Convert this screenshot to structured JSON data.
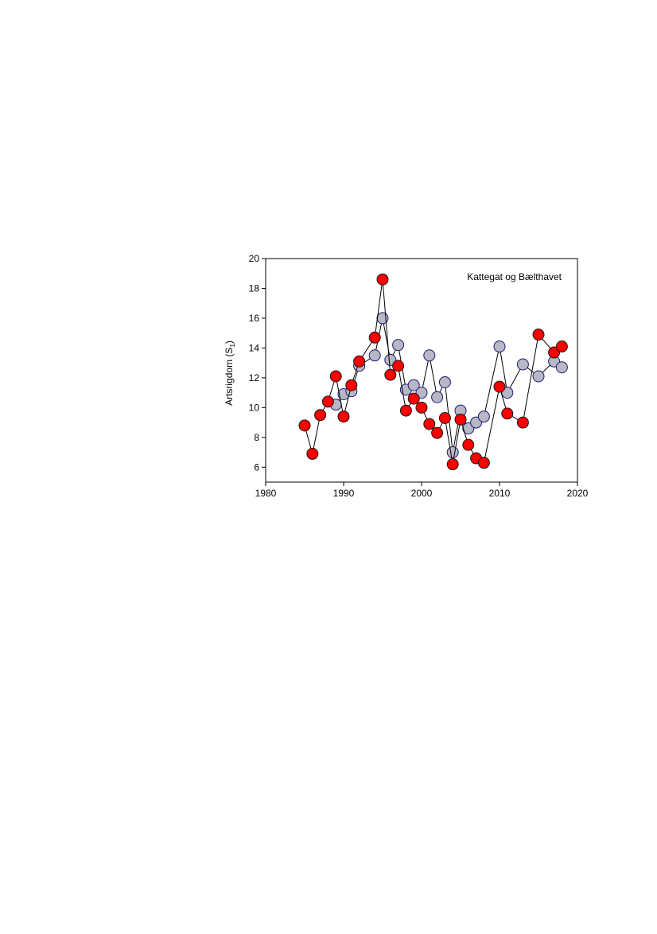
{
  "chart_data": {
    "type": "scatter",
    "title": "",
    "annotation": "Kattegat og Bælthavet",
    "xlabel": "",
    "ylabel": "Artsrigdom (S",
    "ylabel_subscript": "1",
    "ylabel_suffix": ")",
    "xlim": [
      1980,
      2020
    ],
    "ylim": [
      5,
      20
    ],
    "x_ticks": [
      1980,
      1990,
      2000,
      2010,
      2020
    ],
    "y_ticks": [
      6,
      8,
      10,
      12,
      14,
      16,
      18,
      20
    ],
    "grid": false,
    "legend": false,
    "series": [
      {
        "color": "#b8b8c4",
        "edge_color": "#1a1a7a",
        "points": [
          [
            1989,
            10.2
          ],
          [
            1990,
            10.9
          ],
          [
            1991,
            11.1
          ],
          [
            1992,
            12.8
          ],
          [
            1994,
            13.5
          ],
          [
            1995,
            16.0
          ],
          [
            1996,
            13.2
          ],
          [
            1997,
            14.2
          ],
          [
            1998,
            11.2
          ],
          [
            1999,
            11.5
          ],
          [
            2000,
            11.0
          ],
          [
            2001,
            13.5
          ],
          [
            2002,
            10.7
          ],
          [
            2003,
            11.7
          ],
          [
            2004,
            7.0
          ],
          [
            2005,
            9.8
          ],
          [
            2006,
            8.6
          ],
          [
            2007,
            9.0
          ],
          [
            2008,
            9.4
          ],
          [
            2010,
            14.1
          ],
          [
            2011,
            11.0
          ],
          [
            2013,
            12.9
          ],
          [
            2015,
            12.1
          ],
          [
            2017,
            13.1
          ],
          [
            2018,
            12.7
          ]
        ]
      },
      {
        "color": "#ff0000",
        "edge_color": "#1a1a1a",
        "points": [
          [
            1985,
            8.8
          ],
          [
            1986,
            6.9
          ],
          [
            1987,
            9.5
          ],
          [
            1988,
            10.4
          ],
          [
            1989,
            12.1
          ],
          [
            1990,
            9.4
          ],
          [
            1991,
            11.5
          ],
          [
            1992,
            13.1
          ],
          [
            1994,
            14.7
          ],
          [
            1995,
            18.6
          ],
          [
            1996,
            12.2
          ],
          [
            1997,
            12.8
          ],
          [
            1998,
            9.8
          ],
          [
            1999,
            10.6
          ],
          [
            2000,
            10.0
          ],
          [
            2001,
            8.9
          ],
          [
            2002,
            8.3
          ],
          [
            2003,
            9.3
          ],
          [
            2004,
            6.2
          ],
          [
            2005,
            9.2
          ],
          [
            2006,
            7.5
          ],
          [
            2007,
            6.6
          ],
          [
            2008,
            6.3
          ],
          [
            2010,
            11.4
          ],
          [
            2011,
            9.6
          ],
          [
            2013,
            9.0
          ],
          [
            2015,
            14.9
          ],
          [
            2017,
            13.7
          ],
          [
            2018,
            14.1
          ]
        ]
      }
    ]
  }
}
